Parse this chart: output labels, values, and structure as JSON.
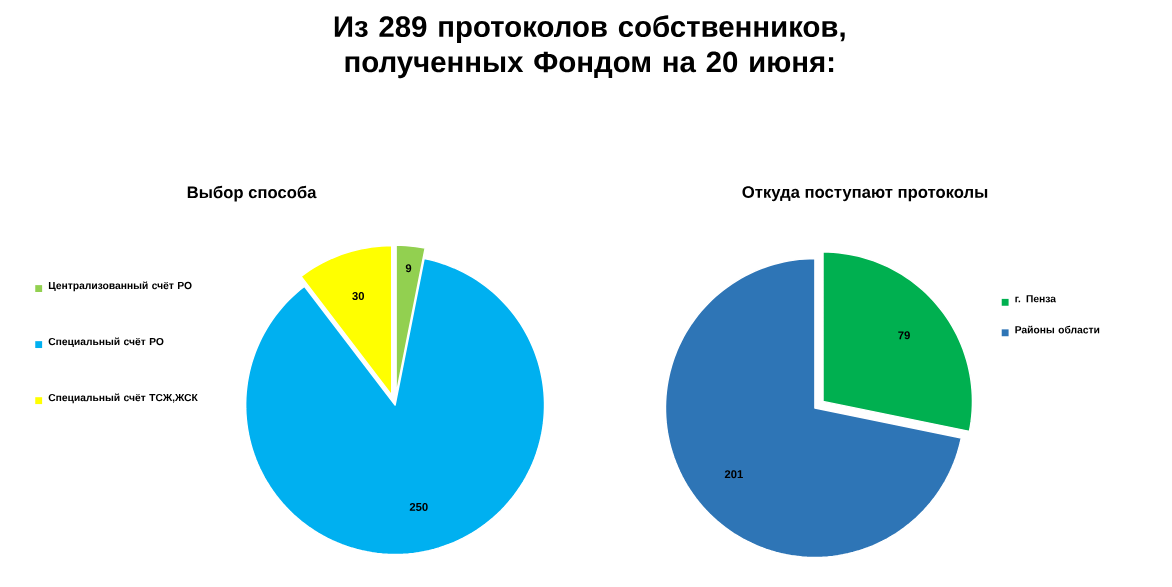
{
  "chart_data": [
    {
      "type": "pie",
      "title": "Из 289 протоколов собственников, полученных Фондом на 20 июня:",
      "subtitle": "Выбор способа",
      "categories": [
        "Централизованный счёт РО",
        "Специальный счёт РО",
        "Специальный счёт ТСЖ,ЖСК"
      ],
      "values": [
        9,
        250,
        30
      ],
      "colors": [
        "#92d050",
        "#00b0f0",
        "#ffff00"
      ],
      "data_labels": true,
      "legend": "left"
    },
    {
      "type": "pie",
      "title": "Откуда поступают протоколы",
      "categories": [
        "г. Пенза",
        "Районы области"
      ],
      "values": [
        79,
        201
      ],
      "colors": [
        "#00b050",
        "#2e75b6"
      ],
      "data_labels": true,
      "legend": "right"
    }
  ]
}
